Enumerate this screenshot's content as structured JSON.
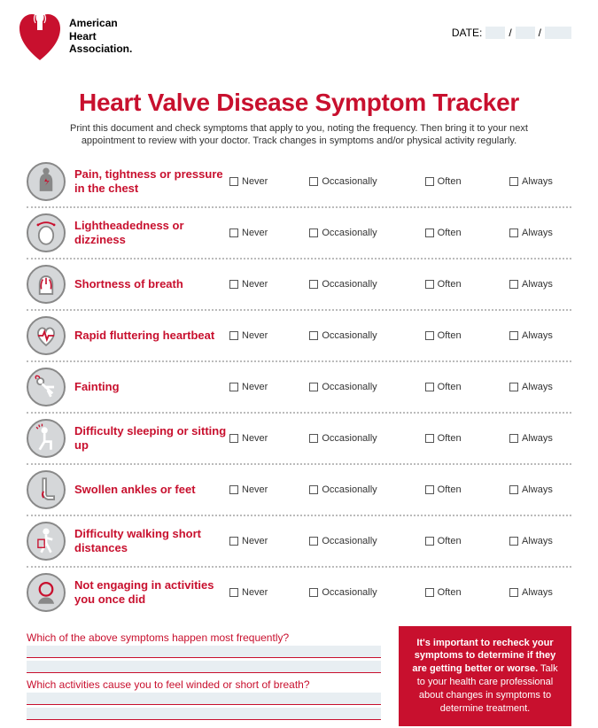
{
  "brand": {
    "org_line1": "American",
    "org_line2": "Heart",
    "org_line3": "Association",
    "org_suffix": ".",
    "logo_color": "#c8102e"
  },
  "date": {
    "label": "DATE:",
    "sep": "/"
  },
  "title": "Heart Valve Disease Symptom Tracker",
  "instructions": "Print this document and check symptoms that apply to you, noting the frequency. Then bring it to your next appointment to review with your doctor. Track changes in symptoms and/or physical activity regularly.",
  "freq": {
    "never": "Never",
    "occasionally": "Occasionally",
    "often": "Often",
    "always": "Always"
  },
  "symptoms": [
    {
      "label": "Pain, tightness or pressure in the chest",
      "icon": "chest-pain"
    },
    {
      "label": "Lightheadedness or dizziness",
      "icon": "dizzy"
    },
    {
      "label": "Shortness of breath",
      "icon": "lungs"
    },
    {
      "label": "Rapid fluttering heartbeat",
      "icon": "heartbeat"
    },
    {
      "label": "Fainting",
      "icon": "fainting"
    },
    {
      "label": "Difficulty sleeping or sitting up",
      "icon": "sitting"
    },
    {
      "label": "Swollen ankles or feet",
      "icon": "foot"
    },
    {
      "label": "Difficulty walking short distances",
      "icon": "walking"
    },
    {
      "label": "Not engaging in activities you once did",
      "icon": "head"
    }
  ],
  "questions": {
    "q1": "Which of the above symptoms happen most frequently?",
    "q2": "Which activities cause you to feel winded or short of breath?"
  },
  "callout": {
    "bold": "It's important to recheck your symptoms to determine if they are getting better or worse.",
    "rest": "  Talk to your health care professional about changes in symptoms to determine treatment."
  },
  "colors": {
    "accent": "#c8102e",
    "icon_bg": "#d5d7d9",
    "field_bg": "#e8eef2"
  }
}
